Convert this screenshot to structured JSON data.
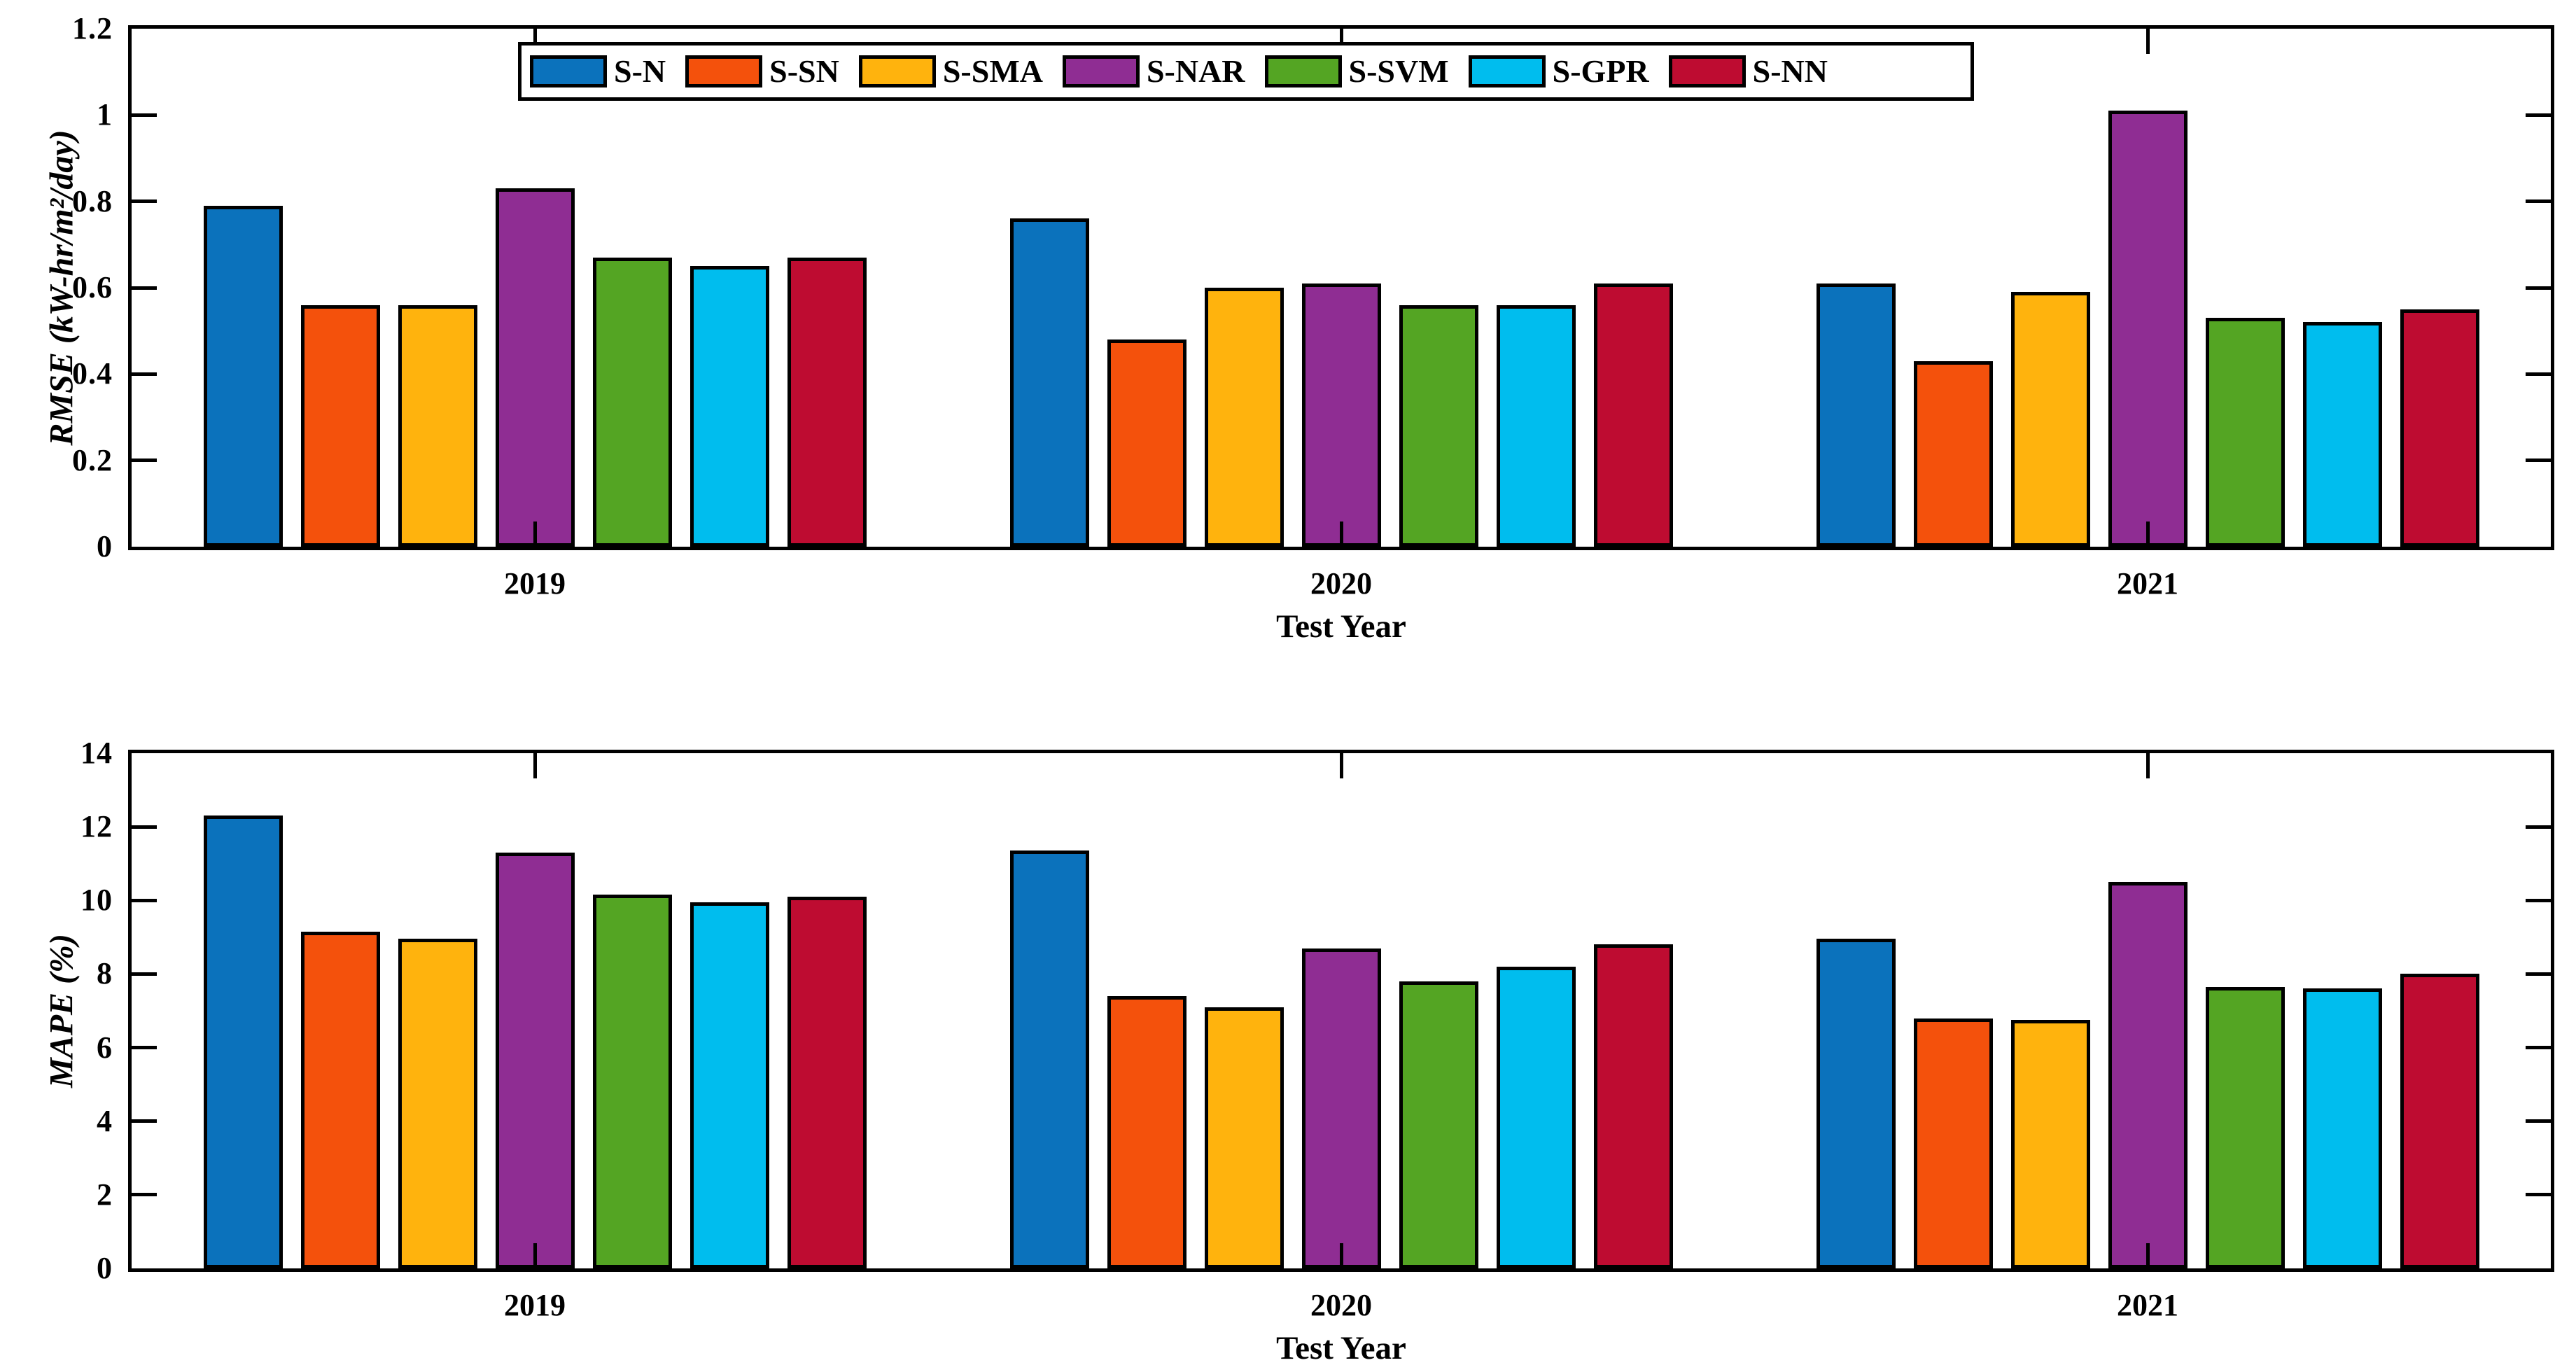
{
  "figure": {
    "background": "#FFFFFF",
    "axis_color": "#000000"
  },
  "legend": {
    "items": [
      {
        "label": "S-N",
        "color": "#0B72BC"
      },
      {
        "label": "S-SN",
        "color": "#F4510C"
      },
      {
        "label": "S-SMA",
        "color": "#FFB30D"
      },
      {
        "label": "S-NAR",
        "color": "#8F2D93"
      },
      {
        "label": "S-SVM",
        "color": "#54A523"
      },
      {
        "label": "S-GPR",
        "color": "#00BDEE"
      },
      {
        "label": "S-NN",
        "color": "#BE0C31"
      }
    ]
  },
  "chart_data": [
    {
      "type": "bar",
      "title": "",
      "xlabel": "Test Year",
      "ylabel": "RMSE (kW-hr/m²/day)",
      "categories": [
        "2019",
        "2020",
        "2021"
      ],
      "series": [
        {
          "name": "S-N",
          "color": "#0B72BC",
          "values": [
            0.79,
            0.76,
            0.61
          ]
        },
        {
          "name": "S-SN",
          "color": "#F4510C",
          "values": [
            0.56,
            0.48,
            0.43
          ]
        },
        {
          "name": "S-SMA",
          "color": "#FFB30D",
          "values": [
            0.56,
            0.6,
            0.59
          ]
        },
        {
          "name": "S-NAR",
          "color": "#8F2D93",
          "values": [
            0.83,
            0.61,
            1.01
          ]
        },
        {
          "name": "S-SVM",
          "color": "#54A523",
          "values": [
            0.67,
            0.56,
            0.53
          ]
        },
        {
          "name": "S-GPR",
          "color": "#00BDEE",
          "values": [
            0.65,
            0.56,
            0.52
          ]
        },
        {
          "name": "S-NN",
          "color": "#BE0C31",
          "values": [
            0.67,
            0.61,
            0.55
          ]
        }
      ],
      "ylim": [
        0,
        1.2
      ],
      "yticks": [
        "0",
        "0.2",
        "0.4",
        "0.6",
        "0.8",
        "1",
        "1.2"
      ],
      "grid": false,
      "legend_position": "top-center",
      "box": true
    },
    {
      "type": "bar",
      "title": "",
      "xlabel": "Test Year",
      "ylabel": "MAPE (%)",
      "categories": [
        "2019",
        "2020",
        "2021"
      ],
      "series": [
        {
          "name": "S-N",
          "color": "#0B72BC",
          "values": [
            12.3,
            11.35,
            8.95
          ]
        },
        {
          "name": "S-SN",
          "color": "#F4510C",
          "values": [
            9.15,
            7.4,
            6.8
          ]
        },
        {
          "name": "S-SMA",
          "color": "#FFB30D",
          "values": [
            8.95,
            7.1,
            6.75
          ]
        },
        {
          "name": "S-NAR",
          "color": "#8F2D93",
          "values": [
            11.3,
            8.7,
            10.5
          ]
        },
        {
          "name": "S-SVM",
          "color": "#54A523",
          "values": [
            10.15,
            7.8,
            7.65
          ]
        },
        {
          "name": "S-GPR",
          "color": "#00BDEE",
          "values": [
            9.95,
            8.2,
            7.6
          ]
        },
        {
          "name": "S-NN",
          "color": "#BE0C31",
          "values": [
            10.1,
            8.8,
            8.0
          ]
        }
      ],
      "ylim": [
        0,
        14
      ],
      "yticks": [
        "0",
        "2",
        "4",
        "6",
        "8",
        "10",
        "12",
        "14"
      ],
      "grid": false,
      "legend_position": "none",
      "box": true
    }
  ]
}
